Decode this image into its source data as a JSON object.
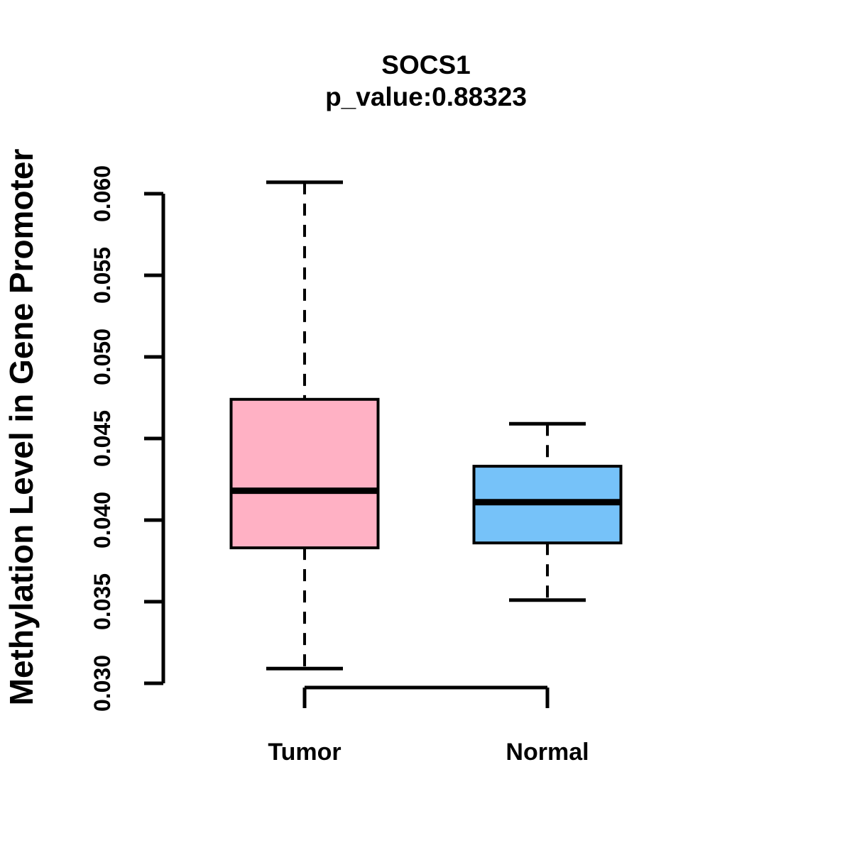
{
  "page": {
    "background": "#FFFFFF"
  },
  "chart_data": {
    "type": "boxplot",
    "title": "SOCS1",
    "subtitle": "p_value:0.88323",
    "ylabel": "Methylation Level in Gene Promoter",
    "xlabel": "",
    "ylim": [
      0.03,
      0.06
    ],
    "grid": false,
    "legend": "none",
    "yticks": [
      0.03,
      0.035,
      0.04,
      0.045,
      0.05,
      0.055,
      0.06
    ],
    "ytick_labels": [
      "0.030",
      "0.035",
      "0.040",
      "0.045",
      "0.050",
      "0.055",
      "0.060"
    ],
    "categories": [
      "Tumor",
      "Normal"
    ],
    "series": [
      {
        "name": "Tumor",
        "min": 0.0309,
        "q1": 0.0383,
        "median": 0.0418,
        "q3": 0.0474,
        "max": 0.0607,
        "fill": "#FFB1C4"
      },
      {
        "name": "Normal",
        "min": 0.0351,
        "q1": 0.0386,
        "median": 0.0411,
        "q3": 0.0433,
        "max": 0.0459,
        "fill": "#76C2F9"
      }
    ],
    "stroke_color": "#000000",
    "comparison_bracket": {
      "present": true,
      "connects": [
        "Tumor",
        "Normal"
      ]
    }
  }
}
